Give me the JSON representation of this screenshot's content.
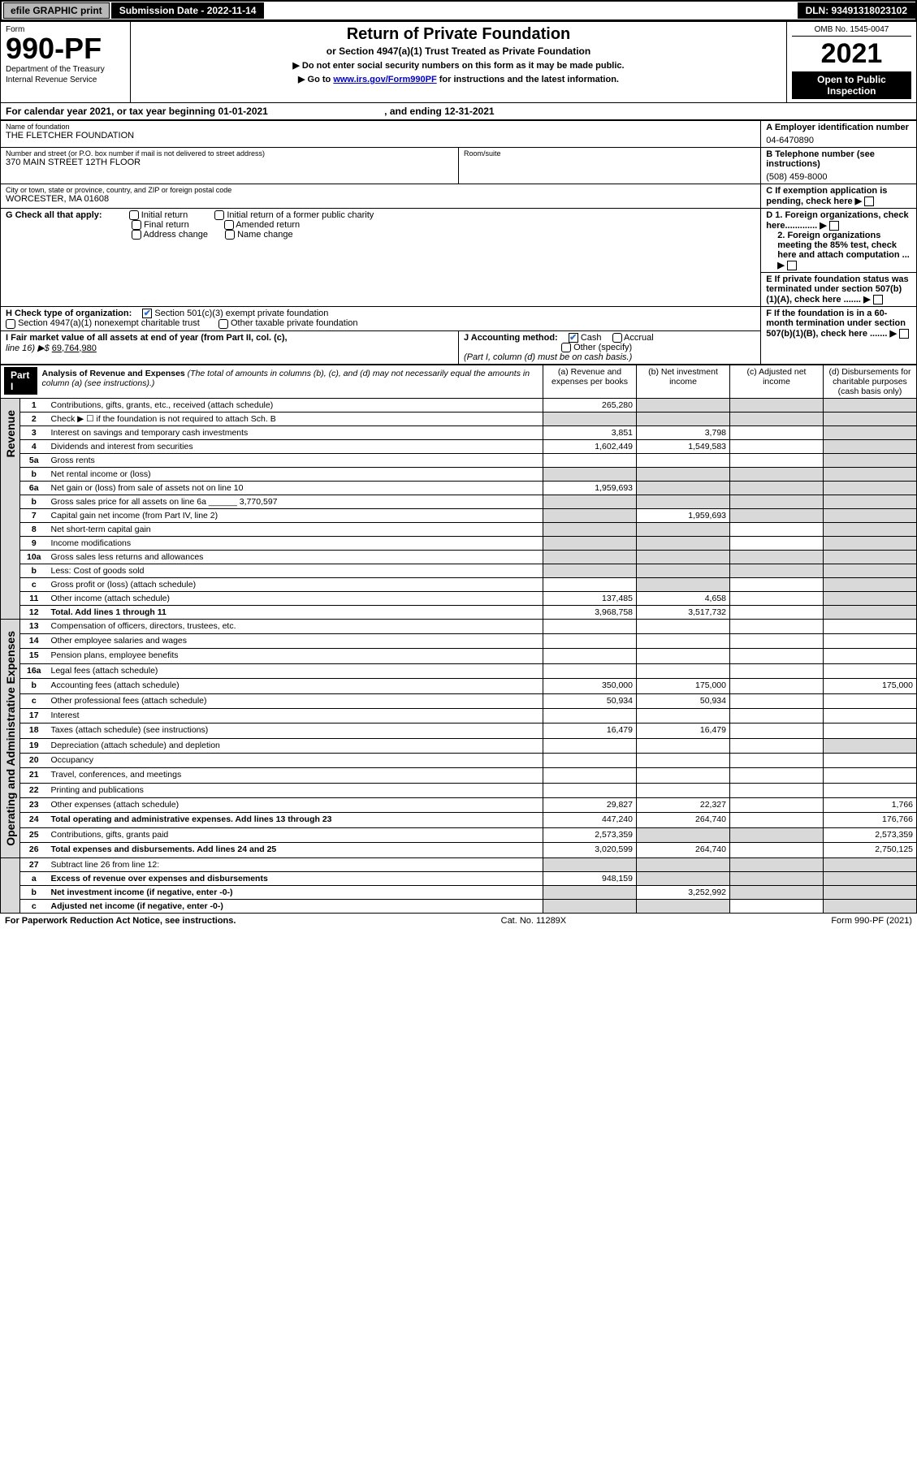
{
  "top_bar": {
    "efile_label": "efile GRAPHIC print",
    "submission_label": "Submission Date - 2022-11-14",
    "dln_label": "DLN: 93491318023102"
  },
  "header": {
    "form_word": "Form",
    "form_number": "990-PF",
    "dept": "Department of the Treasury",
    "irs": "Internal Revenue Service",
    "title": "Return of Private Foundation",
    "subtitle": "or Section 4947(a)(1) Trust Treated as Private Foundation",
    "note1": "▶ Do not enter social security numbers on this form as it may be made public.",
    "note2_prefix": "▶ Go to ",
    "note2_link": "www.irs.gov/Form990PF",
    "note2_suffix": " for instructions and the latest information.",
    "omb": "OMB No. 1545-0047",
    "tax_year": "2021",
    "inspect": "Open to Public Inspection"
  },
  "calendar_line": {
    "prefix": "For calendar year 2021, or tax year beginning ",
    "begin": "01-01-2021",
    "mid": " , and ending ",
    "end": "12-31-2021"
  },
  "ident": {
    "name_label": "Name of foundation",
    "name": "THE FLETCHER FOUNDATION",
    "addr_label": "Number and street (or P.O. box number if mail is not delivered to street address)",
    "addr": "370 MAIN STREET 12TH FLOOR",
    "room_label": "Room/suite",
    "city_label": "City or town, state or province, country, and ZIP or foreign postal code",
    "city": "WORCESTER, MA  01608",
    "A_label": "A Employer identification number",
    "A_value": "04-6470890",
    "B_label": "B Telephone number (see instructions)",
    "B_value": "(508) 459-8000",
    "C_label": "C If exemption application is pending, check here",
    "D1_label": "D 1. Foreign organizations, check here.............",
    "D2_label": "2. Foreign organizations meeting the 85% test, check here and attach computation ...",
    "E_label": "E  If private foundation status was terminated under section 507(b)(1)(A), check here .......",
    "F_label": "F  If the foundation is in a 60-month termination under section 507(b)(1)(B), check here .......",
    "G_label": "G Check all that apply:",
    "G_opts": [
      "Initial return",
      "Final return",
      "Address change",
      "Initial return of a former public charity",
      "Amended return",
      "Name change"
    ],
    "H_label": "H Check type of organization:",
    "H_opts": [
      "Section 501(c)(3) exempt private foundation",
      "Section 4947(a)(1) nonexempt charitable trust",
      "Other taxable private foundation"
    ],
    "I_label": "I Fair market value of all assets at end of year (from Part II, col. (c),",
    "I_line": "line 16) ▶$",
    "I_value": "69,764,980",
    "J_label": "J Accounting method:",
    "J_opts": [
      "Cash",
      "Accrual"
    ],
    "J_other": "Other (specify)",
    "J_note": "(Part I, column (d) must be on cash basis.)"
  },
  "part1": {
    "label": "Part I",
    "title": "Analysis of Revenue and Expenses",
    "title_note": "(The total of amounts in columns (b), (c), and (d) may not necessarily equal the amounts in column (a) (see instructions).)",
    "col_a": "(a)  Revenue and expenses per books",
    "col_b": "(b)  Net investment income",
    "col_c": "(c)  Adjusted net income",
    "col_d": "(d)  Disbursements for charitable purposes (cash basis only)"
  },
  "revenue_label": "Revenue",
  "expenses_label": "Operating and Administrative Expenses",
  "rows": [
    {
      "n": "1",
      "desc": "Contributions, gifts, grants, etc., received (attach schedule)",
      "a": "265,280",
      "b": "",
      "c": "",
      "d": "",
      "b_grey": true,
      "c_grey": true,
      "d_grey": true,
      "grp": "rev"
    },
    {
      "n": "2",
      "desc": "Check ▶ ☐ if the foundation is not required to attach Sch. B",
      "a": "",
      "b": "",
      "c": "",
      "d": "",
      "a_grey": true,
      "b_grey": true,
      "c_grey": true,
      "d_grey": true,
      "grp": "rev"
    },
    {
      "n": "3",
      "desc": "Interest on savings and temporary cash investments",
      "a": "3,851",
      "b": "3,798",
      "c": "",
      "d": "",
      "d_grey": true,
      "grp": "rev"
    },
    {
      "n": "4",
      "desc": "Dividends and interest from securities",
      "a": "1,602,449",
      "b": "1,549,583",
      "c": "",
      "d": "",
      "d_grey": true,
      "grp": "rev"
    },
    {
      "n": "5a",
      "desc": "Gross rents",
      "a": "",
      "b": "",
      "c": "",
      "d": "",
      "d_grey": true,
      "grp": "rev"
    },
    {
      "n": "b",
      "desc": "Net rental income or (loss)",
      "a": "",
      "b": "",
      "c": "",
      "d": "",
      "a_grey": true,
      "b_grey": true,
      "c_grey": true,
      "d_grey": true,
      "grp": "rev"
    },
    {
      "n": "6a",
      "desc": "Net gain or (loss) from sale of assets not on line 10",
      "a": "1,959,693",
      "b": "",
      "c": "",
      "d": "",
      "b_grey": true,
      "c_grey": true,
      "d_grey": true,
      "grp": "rev"
    },
    {
      "n": "b",
      "desc": "Gross sales price for all assets on line 6a ______ 3,770,597",
      "a": "",
      "b": "",
      "c": "",
      "d": "",
      "a_grey": true,
      "b_grey": true,
      "c_grey": true,
      "d_grey": true,
      "grp": "rev"
    },
    {
      "n": "7",
      "desc": "Capital gain net income (from Part IV, line 2)",
      "a": "",
      "b": "1,959,693",
      "c": "",
      "d": "",
      "a_grey": true,
      "c_grey": true,
      "d_grey": true,
      "grp": "rev"
    },
    {
      "n": "8",
      "desc": "Net short-term capital gain",
      "a": "",
      "b": "",
      "c": "",
      "d": "",
      "a_grey": true,
      "b_grey": true,
      "d_grey": true,
      "grp": "rev"
    },
    {
      "n": "9",
      "desc": "Income modifications",
      "a": "",
      "b": "",
      "c": "",
      "d": "",
      "a_grey": true,
      "b_grey": true,
      "d_grey": true,
      "grp": "rev"
    },
    {
      "n": "10a",
      "desc": "Gross sales less returns and allowances",
      "a": "",
      "b": "",
      "c": "",
      "d": "",
      "a_grey": true,
      "b_grey": true,
      "c_grey": true,
      "d_grey": true,
      "grp": "rev"
    },
    {
      "n": "b",
      "desc": "Less: Cost of goods sold",
      "a": "",
      "b": "",
      "c": "",
      "d": "",
      "a_grey": true,
      "b_grey": true,
      "c_grey": true,
      "d_grey": true,
      "grp": "rev"
    },
    {
      "n": "c",
      "desc": "Gross profit or (loss) (attach schedule)",
      "a": "",
      "b": "",
      "c": "",
      "d": "",
      "b_grey": true,
      "d_grey": true,
      "grp": "rev"
    },
    {
      "n": "11",
      "desc": "Other income (attach schedule)",
      "a": "137,485",
      "b": "4,658",
      "c": "",
      "d": "",
      "d_grey": true,
      "grp": "rev"
    },
    {
      "n": "12",
      "desc": "Total. Add lines 1 through 11",
      "a": "3,968,758",
      "b": "3,517,732",
      "c": "",
      "d": "",
      "d_grey": true,
      "bold": true,
      "grp": "rev"
    },
    {
      "n": "13",
      "desc": "Compensation of officers, directors, trustees, etc.",
      "a": "",
      "b": "",
      "c": "",
      "d": "",
      "grp": "exp"
    },
    {
      "n": "14",
      "desc": "Other employee salaries and wages",
      "a": "",
      "b": "",
      "c": "",
      "d": "",
      "grp": "exp"
    },
    {
      "n": "15",
      "desc": "Pension plans, employee benefits",
      "a": "",
      "b": "",
      "c": "",
      "d": "",
      "grp": "exp"
    },
    {
      "n": "16a",
      "desc": "Legal fees (attach schedule)",
      "a": "",
      "b": "",
      "c": "",
      "d": "",
      "grp": "exp"
    },
    {
      "n": "b",
      "desc": "Accounting fees (attach schedule)",
      "a": "350,000",
      "b": "175,000",
      "c": "",
      "d": "175,000",
      "grp": "exp"
    },
    {
      "n": "c",
      "desc": "Other professional fees (attach schedule)",
      "a": "50,934",
      "b": "50,934",
      "c": "",
      "d": "",
      "grp": "exp"
    },
    {
      "n": "17",
      "desc": "Interest",
      "a": "",
      "b": "",
      "c": "",
      "d": "",
      "grp": "exp"
    },
    {
      "n": "18",
      "desc": "Taxes (attach schedule) (see instructions)",
      "a": "16,479",
      "b": "16,479",
      "c": "",
      "d": "",
      "grp": "exp"
    },
    {
      "n": "19",
      "desc": "Depreciation (attach schedule) and depletion",
      "a": "",
      "b": "",
      "c": "",
      "d": "",
      "d_grey": true,
      "grp": "exp"
    },
    {
      "n": "20",
      "desc": "Occupancy",
      "a": "",
      "b": "",
      "c": "",
      "d": "",
      "grp": "exp"
    },
    {
      "n": "21",
      "desc": "Travel, conferences, and meetings",
      "a": "",
      "b": "",
      "c": "",
      "d": "",
      "grp": "exp"
    },
    {
      "n": "22",
      "desc": "Printing and publications",
      "a": "",
      "b": "",
      "c": "",
      "d": "",
      "grp": "exp"
    },
    {
      "n": "23",
      "desc": "Other expenses (attach schedule)",
      "a": "29,827",
      "b": "22,327",
      "c": "",
      "d": "1,766",
      "grp": "exp"
    },
    {
      "n": "24",
      "desc": "Total operating and administrative expenses. Add lines 13 through 23",
      "a": "447,240",
      "b": "264,740",
      "c": "",
      "d": "176,766",
      "bold": true,
      "grp": "exp"
    },
    {
      "n": "25",
      "desc": "Contributions, gifts, grants paid",
      "a": "2,573,359",
      "b": "",
      "c": "",
      "d": "2,573,359",
      "b_grey": true,
      "c_grey": true,
      "grp": "exp"
    },
    {
      "n": "26",
      "desc": "Total expenses and disbursements. Add lines 24 and 25",
      "a": "3,020,599",
      "b": "264,740",
      "c": "",
      "d": "2,750,125",
      "bold": true,
      "grp": "exp"
    },
    {
      "n": "27",
      "desc": "Subtract line 26 from line 12:",
      "a": "",
      "b": "",
      "c": "",
      "d": "",
      "a_grey": true,
      "b_grey": true,
      "c_grey": true,
      "d_grey": true,
      "grp": "sum"
    },
    {
      "n": "a",
      "desc": "Excess of revenue over expenses and disbursements",
      "a": "948,159",
      "b": "",
      "c": "",
      "d": "",
      "b_grey": true,
      "c_grey": true,
      "d_grey": true,
      "bold": true,
      "grp": "sum"
    },
    {
      "n": "b",
      "desc": "Net investment income (if negative, enter -0-)",
      "a": "",
      "b": "3,252,992",
      "c": "",
      "d": "",
      "a_grey": true,
      "c_grey": true,
      "d_grey": true,
      "bold": true,
      "grp": "sum"
    },
    {
      "n": "c",
      "desc": "Adjusted net income (if negative, enter -0-)",
      "a": "",
      "b": "",
      "c": "",
      "d": "",
      "a_grey": true,
      "b_grey": true,
      "d_grey": true,
      "bold": true,
      "grp": "sum"
    }
  ],
  "footer": {
    "left": "For Paperwork Reduction Act Notice, see instructions.",
    "center": "Cat. No. 11289X",
    "right": "Form 990-PF (2021)"
  },
  "style": {
    "grey": "#d9d9d9",
    "black": "#000000",
    "blue": "#2a6fd6",
    "link": "#0000cc"
  }
}
